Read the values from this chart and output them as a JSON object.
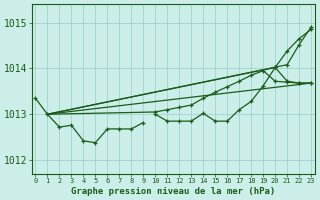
{
  "background_color": "#cceee8",
  "grid_color": "#99cccc",
  "line_color": "#1a5c1a",
  "xlabel": "Graphe pression niveau de la mer (hPa)",
  "ylim": [
    1011.7,
    1015.4
  ],
  "xlim": [
    -0.3,
    23.3
  ],
  "yticks": [
    1012,
    1013,
    1014,
    1015
  ],
  "xtick_labels": [
    "0",
    "1",
    "2",
    "3",
    "4",
    "5",
    "6",
    "7",
    "8",
    "9",
    "10",
    "11",
    "12",
    "13",
    "14",
    "15",
    "16",
    "17",
    "18",
    "19",
    "20",
    "21",
    "22",
    "23"
  ],
  "line1_x": [
    0,
    1,
    2,
    3,
    4,
    5,
    6,
    7,
    8,
    9
  ],
  "line1_y": [
    1013.35,
    1013.0,
    1012.72,
    1012.76,
    1012.42,
    1012.38,
    1012.68,
    1012.68,
    1012.68,
    1012.82
  ],
  "line2_x": [
    10,
    11,
    12,
    13,
    14,
    15,
    16,
    17,
    18,
    19,
    20,
    21,
    22,
    23
  ],
  "line2_y": [
    1013.0,
    1012.85,
    1012.85,
    1012.85,
    1013.02,
    1012.85,
    1012.85,
    1013.1,
    1013.28,
    1013.62,
    1014.02,
    1013.72,
    1013.68,
    1013.68
  ],
  "fan_line1_x": [
    1,
    9,
    10,
    11,
    12,
    13,
    14,
    15,
    16,
    17,
    18,
    19,
    20,
    21,
    22,
    23
  ],
  "fan_line1_y": [
    1013.0,
    1013.0,
    1013.05,
    1013.1,
    1013.15,
    1013.2,
    1013.28,
    1013.38,
    1013.48,
    1013.6,
    1013.72,
    1013.85,
    1013.98,
    1013.72,
    1013.68,
    1013.68
  ],
  "fan_line2_x": [
    1,
    23
  ],
  "fan_line2_y": [
    1013.0,
    1013.68
  ],
  "fan_line3_x": [
    1,
    20,
    21,
    22,
    23
  ],
  "fan_line3_y": [
    1013.0,
    1014.02,
    1014.38,
    1014.65,
    1014.85
  ],
  "fan_line4_x": [
    1,
    21,
    22,
    23
  ],
  "fan_line4_y": [
    1013.0,
    1014.08,
    1014.52,
    1014.9
  ]
}
